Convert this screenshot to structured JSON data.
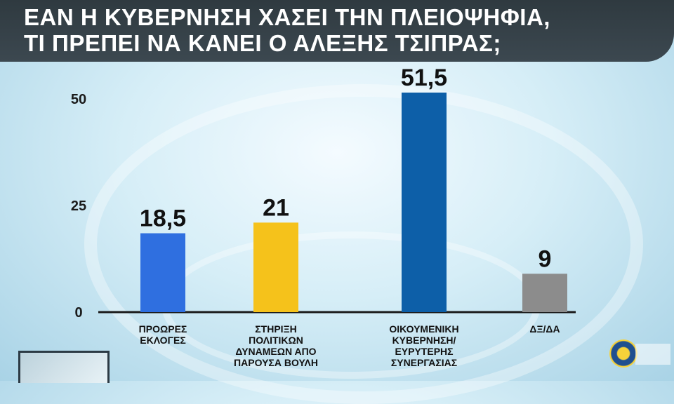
{
  "title": "ΕΑΝ Η ΚΥΒΕΡΝΗΣΗ ΧΑΣΕΙ ΤΗΝ ΠΛΕΙΟΨΗΦΙΑ,\nΤΙ ΠΡΕΠΕΙ ΝΑ ΚΑΝΕΙ Ο ΑΛΕΞΗΣ ΤΣΙΠΡΑΣ;",
  "chart_data": {
    "type": "bar",
    "title": "ΕΑΝ Η ΚΥΒΕΡΝΗΣΗ ΧΑΣΕΙ ΤΗΝ ΠΛΕΙΟΨΗΦΙΑ, ΤΙ ΠΡΕΠΕΙ ΝΑ ΚΑΝΕΙ Ο ΑΛΕΞΗΣ ΤΣΙΠΡΑΣ;",
    "categories": [
      [
        "ΠΡΟΩΡΕΣ",
        "ΕΚΛΟΓΕΣ"
      ],
      [
        "ΣΤΗΡΙΞΗ",
        "ΠΟΛΙΤΙΚΩΝ",
        "ΔΥΝΑΜΕΩΝ ΑΠΟ",
        "ΠΑΡΟΥΣΑ ΒΟΥΛΗ"
      ],
      [
        "ΟΙΚΟΥΜΕΝΙΚΗ",
        "ΚΥΒΕΡΝΗΣΗ/",
        "ΕΥΡΥΤΕΡΗΣ",
        "ΣΥΝΕΡΓΑΣΙΑΣ"
      ],
      [
        "ΔΞ/ΔΑ"
      ]
    ],
    "values": [
      18.5,
      21,
      51.5,
      9
    ],
    "value_labels": [
      "18,5",
      "21",
      "51,5",
      "9"
    ],
    "colors": [
      "#2f6fe0",
      "#f5c21b",
      "#0d5fa8",
      "#8c8c8c"
    ],
    "yticks": [
      0,
      25,
      50
    ],
    "ylim": [
      0,
      51.5
    ],
    "grid": false,
    "xlabel": "",
    "ylabel": ""
  }
}
